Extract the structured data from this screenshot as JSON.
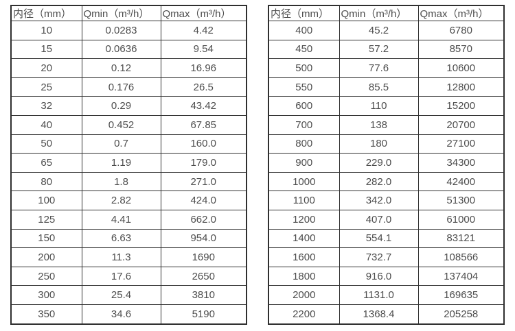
{
  "page": {
    "background": "#ffffff",
    "border_color": "#2f2f2f",
    "text_color": "#4d4d4d"
  },
  "tables": [
    {
      "name": "flow-range-table-small-diameters",
      "columns": [
        "内径（mm）",
        "Qmin（m³/h）",
        "Qmax（m³/h）"
      ],
      "rows": [
        [
          "10",
          "0.0283",
          "4.42"
        ],
        [
          "15",
          "0.0636",
          "9.54"
        ],
        [
          "20",
          "0.12",
          "16.96"
        ],
        [
          "25",
          "0.176",
          "26.5"
        ],
        [
          "32",
          "0.29",
          "43.42"
        ],
        [
          "40",
          "0.452",
          "67.85"
        ],
        [
          "50",
          "0.7",
          "160.0"
        ],
        [
          "65",
          "1.19",
          "179.0"
        ],
        [
          "80",
          "1.8",
          "271.0"
        ],
        [
          "100",
          "2.82",
          "424.0"
        ],
        [
          "125",
          "4.41",
          "662.0"
        ],
        [
          "150",
          "6.63",
          "954.0"
        ],
        [
          "200",
          "11.3",
          "1690"
        ],
        [
          "250",
          "17.6",
          "2650"
        ],
        [
          "300",
          "25.4",
          "3810"
        ],
        [
          "350",
          "34.6",
          "5190"
        ]
      ]
    },
    {
      "name": "flow-range-table-large-diameters",
      "columns": [
        "内径（mm）",
        "Qmin（m³/h）",
        "Qmax（m³/h）"
      ],
      "rows": [
        [
          "400",
          "45.2",
          "6780"
        ],
        [
          "450",
          "57.2",
          "8570"
        ],
        [
          "500",
          "77.6",
          "10600"
        ],
        [
          "550",
          "85.5",
          "12800"
        ],
        [
          "600",
          "110",
          "15200"
        ],
        [
          "700",
          "138",
          "20700"
        ],
        [
          "800",
          "180",
          "27100"
        ],
        [
          "900",
          "229.0",
          "34300"
        ],
        [
          "1000",
          "282.0",
          "42400"
        ],
        [
          "1100",
          "342.0",
          "51300"
        ],
        [
          "1200",
          "407.0",
          "61000"
        ],
        [
          "1400",
          "554.1",
          "83121"
        ],
        [
          "1600",
          "732.7",
          "108566"
        ],
        [
          "1800",
          "916.0",
          "137404"
        ],
        [
          "2000",
          "1131.0",
          "169635"
        ],
        [
          "2200",
          "1368.4",
          "205258"
        ]
      ]
    }
  ]
}
